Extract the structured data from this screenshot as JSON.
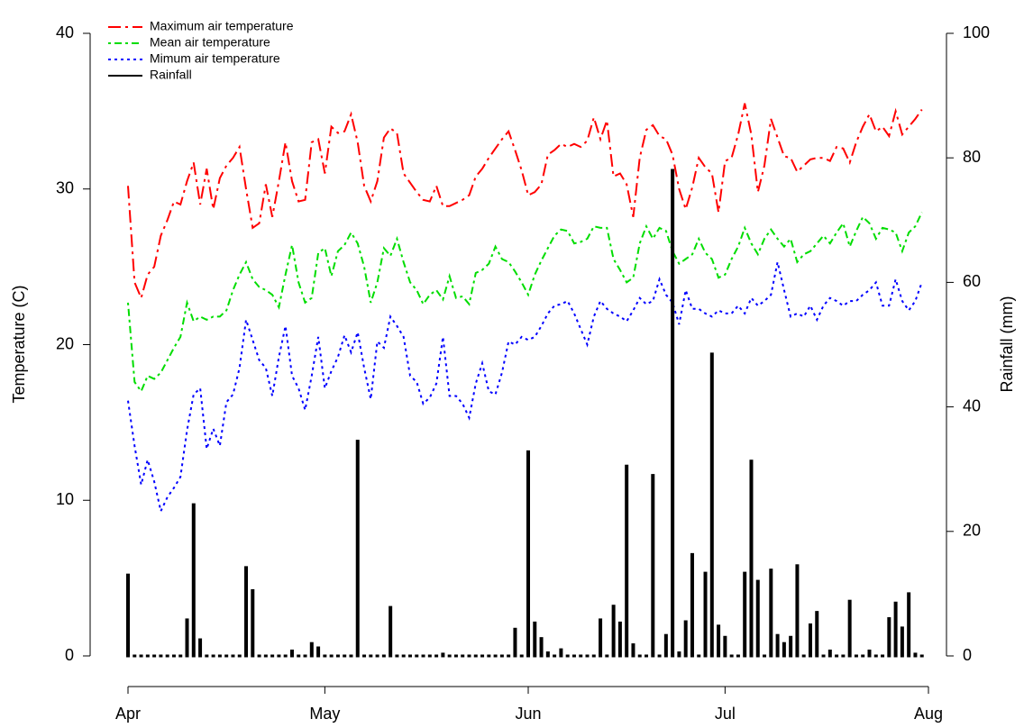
{
  "chart_data": {
    "type": "line-bar",
    "y_label": "Temperature (C)",
    "y2_label": "Rainfall (mm)",
    "x": [
      0,
      1,
      2,
      3,
      4,
      5,
      6,
      7,
      8,
      9,
      10,
      11,
      12,
      13,
      14,
      15,
      16,
      17,
      18,
      19,
      20,
      21,
      22,
      23,
      24,
      25,
      26,
      27,
      28,
      29,
      30,
      31,
      32,
      33,
      34,
      35,
      36,
      37,
      38,
      39,
      40,
      41,
      42,
      43,
      44,
      45,
      46,
      47,
      48,
      49,
      50,
      51,
      52,
      53,
      54,
      55,
      56,
      57,
      58,
      59,
      60,
      61,
      62,
      63,
      64,
      65,
      66,
      67,
      68,
      69,
      70,
      71,
      72,
      73,
      74,
      75,
      76,
      77,
      78,
      79,
      80,
      81,
      82,
      83,
      84,
      85,
      86,
      87,
      88,
      89,
      90,
      91,
      92,
      93,
      94,
      95,
      96,
      97,
      98,
      99,
      100,
      101,
      102,
      103,
      104,
      105,
      106,
      107,
      108,
      109,
      110,
      111,
      112,
      113,
      114,
      115,
      116,
      117,
      118,
      119,
      120,
      121
    ],
    "xlim": [
      0,
      122
    ],
    "xticks": [
      {
        "value": 0,
        "label": "Apr"
      },
      {
        "value": 30,
        "label": "May"
      },
      {
        "value": 61,
        "label": "Jun"
      },
      {
        "value": 91,
        "label": "Jul"
      },
      {
        "value": 122,
        "label": "Aug"
      }
    ],
    "ylim": [
      0,
      40
    ],
    "yticks": [
      0,
      10,
      20,
      30,
      40
    ],
    "y2lim": [
      0,
      100
    ],
    "y2ticks": [
      0,
      20,
      40,
      60,
      80,
      100
    ],
    "legend": "top-left",
    "series": [
      {
        "name": "Maximum air temperature",
        "color": "#ff0000",
        "kind": "line",
        "values": [
          30.2,
          24,
          23,
          24.5,
          25,
          27,
          28,
          29.2,
          29,
          30.5,
          31.7,
          29,
          31.3,
          28.7,
          30.7,
          31.5,
          32,
          32.7,
          30,
          27.5,
          27.8,
          30.3,
          28.2,
          30.5,
          33,
          30.5,
          29.2,
          29.3,
          33,
          33.2,
          31,
          34,
          33.6,
          33.7,
          34.8,
          33,
          30.2,
          29.2,
          30.5,
          33.3,
          33.9,
          33.6,
          31,
          30.4,
          29.8,
          29.3,
          29.2,
          30.2,
          28.9,
          28.9,
          29.1,
          29.3,
          29.6,
          30.8,
          31.3,
          32,
          32.6,
          33.2,
          33.7,
          32.5,
          31.2,
          29.6,
          29.8,
          30.3,
          32.2,
          32.5,
          32.9,
          32.7,
          32.9,
          32.7,
          33.1,
          34.6,
          33.2,
          34.4,
          30.8,
          31,
          30.3,
          28.2,
          32,
          33.8,
          34.1,
          33.4,
          33.2,
          32.2,
          30,
          28.7,
          30.1,
          32,
          31.4,
          31,
          28.5,
          31.8,
          32,
          33.5,
          35.5,
          33.5,
          29.8,
          31.5,
          34.5,
          33.3,
          32.1,
          32,
          31.1,
          31.5,
          31.9,
          32,
          32,
          31.8,
          32.7,
          32.6,
          31.7,
          33,
          34,
          34.8,
          33.7,
          34,
          33.4,
          35,
          33.5,
          34,
          34.5,
          35.1
        ]
      },
      {
        "name": "Mean air temperature",
        "color": "#00dd00",
        "kind": "line",
        "values": [
          22.7,
          17.6,
          17,
          18,
          17.8,
          18.2,
          19,
          19.8,
          20.5,
          22.7,
          21.5,
          21.8,
          21.6,
          21.8,
          21.8,
          22.2,
          23.5,
          24.5,
          25.3,
          24.2,
          23.7,
          23.5,
          23.2,
          22.4,
          24.5,
          26.4,
          24,
          22.7,
          23,
          25.9,
          26.2,
          24.4,
          26,
          26.4,
          27.2,
          26.5,
          25,
          22.7,
          24,
          26.2,
          25.7,
          26.8,
          25.3,
          24,
          23.5,
          22.6,
          23.2,
          23.5,
          22.9,
          24.4,
          23,
          23.1,
          22.6,
          24.6,
          24.8,
          25.2,
          26.3,
          25.5,
          25.3,
          24.7,
          24,
          23.2,
          24.5,
          25.4,
          26.2,
          27,
          27.4,
          27.3,
          26.5,
          26.6,
          26.8,
          27.6,
          27.5,
          27.5,
          25.5,
          24.8,
          24,
          24.3,
          26.5,
          27.6,
          26.8,
          27.5,
          27.3,
          26,
          25.2,
          25.5,
          25.8,
          26.8,
          25.9,
          25.5,
          24.3,
          24.5,
          25.5,
          26.3,
          27.5,
          26.5,
          25.8,
          26.8,
          27.4,
          26.8,
          26.3,
          26.8,
          25.3,
          25.8,
          26,
          26.5,
          27,
          26.5,
          27.2,
          27.8,
          26.3,
          27.3,
          28.2,
          27.8,
          26.8,
          27.5,
          27.4,
          27.2,
          26,
          27.2,
          27.6,
          28.5
        ]
      },
      {
        "name": "Mimum air temperature",
        "color": "#0000ff",
        "kind": "line",
        "values": [
          16.4,
          13.5,
          11,
          12.6,
          11.2,
          9.3,
          10.2,
          10.8,
          11.5,
          14.5,
          16.8,
          17.2,
          13.3,
          14.6,
          13.5,
          16.3,
          16.8,
          18.5,
          21.6,
          20.3,
          19,
          18.5,
          16.7,
          19.2,
          21.2,
          18,
          17.2,
          15.8,
          18,
          20.5,
          17.2,
          18.3,
          19.2,
          20.6,
          19.5,
          20.8,
          18.5,
          16.5,
          20.2,
          19.8,
          21.8,
          21.2,
          20.5,
          18,
          17.6,
          16.2,
          16.6,
          17.5,
          20.5,
          16.7,
          16.7,
          16.2,
          15.3,
          17.5,
          18.8,
          17,
          16.8,
          18.2,
          20.2,
          20,
          20.5,
          20.3,
          20.5,
          21.2,
          22,
          22.5,
          22.6,
          22.8,
          22,
          21,
          20,
          21.8,
          22.8,
          22.3,
          22,
          21.8,
          21.5,
          22.2,
          23,
          22.6,
          22.8,
          24.2,
          23.2,
          22.7,
          21.3,
          23.5,
          22.3,
          22.3,
          22,
          21.8,
          22.2,
          22,
          22,
          22.5,
          22,
          23,
          22.5,
          22.8,
          23.2,
          25.3,
          23.5,
          21.8,
          22,
          21.8,
          22.5,
          21.6,
          22.5,
          23,
          22.8,
          22.5,
          22.8,
          22.8,
          23.2,
          23.5,
          24,
          22.5,
          22.5,
          24.2,
          22.8,
          22.2,
          22.8,
          24
        ]
      },
      {
        "name": "Rainfall",
        "color": "#000000",
        "kind": "bar",
        "axis": "y2",
        "values": [
          13,
          0,
          0,
          0,
          0,
          0,
          0,
          0,
          0,
          5.8,
          24.3,
          2.6,
          0,
          0,
          0,
          0,
          0,
          0,
          14.2,
          10.5,
          0,
          0,
          0,
          0,
          0,
          0.8,
          0,
          0,
          2,
          1.3,
          0,
          0,
          0,
          0,
          0,
          34.5,
          0,
          0,
          0,
          0,
          7.8,
          0,
          0,
          0,
          0,
          0,
          0,
          0,
          0.3,
          0,
          0,
          0,
          0,
          0,
          0,
          0,
          0,
          0,
          0,
          4.3,
          0,
          32.8,
          5.3,
          2.8,
          0.5,
          0,
          1,
          0,
          0,
          0,
          0,
          0,
          5.8,
          0,
          8,
          5.3,
          30.5,
          1.8,
          0,
          0,
          29,
          0,
          3.3,
          78,
          0.5,
          5.5,
          16.3,
          0,
          13.3,
          48.5,
          4.8,
          3,
          0,
          0,
          13.3,
          31.3,
          12,
          0,
          13.8,
          3.3,
          2,
          3,
          14.5,
          0,
          5,
          7,
          0,
          0.8,
          0,
          0,
          8.8,
          0,
          0,
          0.8,
          0,
          0,
          6,
          8.5,
          4.5,
          10,
          0.3,
          0
        ]
      }
    ]
  }
}
